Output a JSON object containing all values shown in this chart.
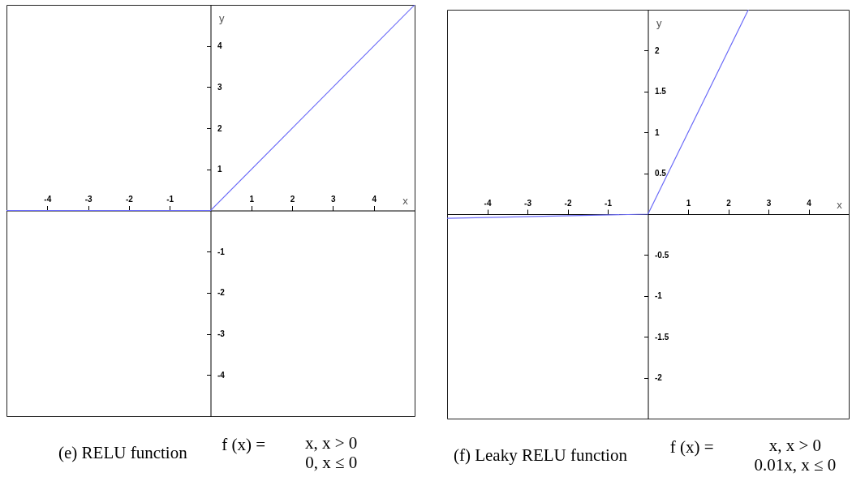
{
  "chart_data": [
    {
      "type": "line",
      "title": "(e) RELU function",
      "annotations": [
        "f (x) =",
        "x, x > 0",
        "0, x ≤ 0"
      ],
      "xlabel": "x",
      "ylabel": "y",
      "x": [
        -5,
        0,
        5
      ],
      "series": [
        {
          "color": "#6b6bf8",
          "values": [
            0,
            0,
            5
          ]
        }
      ],
      "xlim": [
        -5,
        5
      ],
      "ylim": [
        -5,
        5
      ],
      "xticks": [
        -4,
        -3,
        -2,
        -1,
        1,
        2,
        3,
        4
      ],
      "yticks": [
        -4,
        -3,
        -2,
        -1,
        1,
        2,
        3,
        4
      ]
    },
    {
      "type": "line",
      "title": "(f) Leaky RELU function",
      "annotations": [
        "f (x) =",
        "x, x > 0",
        "0.01x, x ≤ 0"
      ],
      "xlabel": "x",
      "ylabel": "y",
      "x": [
        -5,
        0,
        2.5
      ],
      "series": [
        {
          "color": "#6b6bf8",
          "values": [
            -0.05,
            0,
            2.5
          ]
        }
      ],
      "xlim": [
        -5,
        5
      ],
      "ylim": [
        -2.5,
        2.5
      ],
      "xticks": [
        -4,
        -3,
        -2,
        -1,
        1,
        2,
        3,
        4
      ],
      "yticks": [
        -2,
        -1.5,
        -1,
        -0.5,
        0.5,
        1,
        1.5,
        2
      ]
    }
  ]
}
